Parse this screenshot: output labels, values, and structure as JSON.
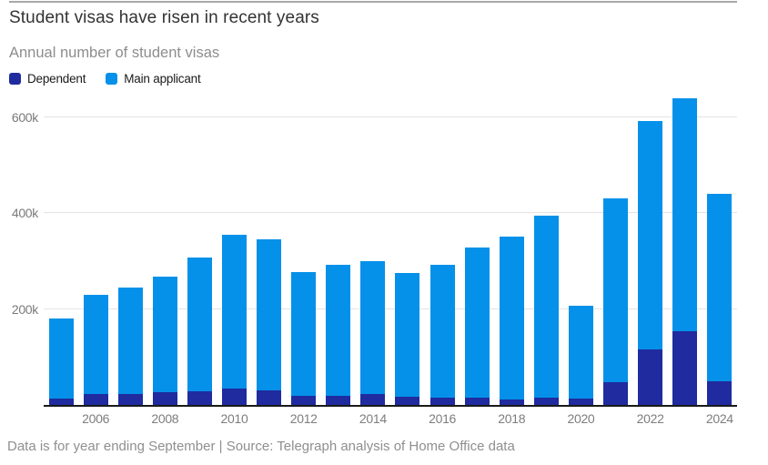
{
  "header": {
    "title": "Student visas have risen in recent years",
    "subtitle": "Annual number of student visas"
  },
  "legend": [
    {
      "label": "Dependent",
      "color": "#1f2b9e"
    },
    {
      "label": "Main applicant",
      "color": "#0591e9"
    }
  ],
  "footer": {
    "note": "Data is for year ending September | Source: Telegraph analysis of Home Office data"
  },
  "colors": {
    "dependent": "#1f2b9e",
    "main_applicant": "#0591e9",
    "gridline": "#e3e3e3",
    "baseline": "#1a1a1a",
    "axis_text": "#7a7a7a"
  },
  "chart_data": {
    "type": "bar",
    "stacked": true,
    "title": "Student visas have risen in recent years",
    "subtitle": "Annual number of student visas",
    "unit": "thousands of visas",
    "categories": [
      "2005",
      "2006",
      "2007",
      "2008",
      "2009",
      "2010",
      "2011",
      "2012",
      "2013",
      "2014",
      "2015",
      "2016",
      "2017",
      "2018",
      "2019",
      "2020",
      "2021",
      "2022",
      "2023",
      "2024"
    ],
    "series": [
      {
        "name": "Dependent",
        "color": "#1f2b9e",
        "values": [
          14,
          23,
          22,
          26,
          28,
          34,
          31,
          19,
          19,
          22,
          17,
          16,
          15,
          11,
          16,
          14,
          47,
          116,
          153,
          50
        ]
      },
      {
        "name": "Main applicant",
        "color": "#0591e9",
        "values": [
          166,
          207,
          222,
          242,
          280,
          320,
          314,
          258,
          274,
          277,
          259,
          276,
          314,
          340,
          378,
          193,
          384,
          476,
          486,
          391
        ]
      }
    ],
    "totals": [
      180,
      230,
      244,
      268,
      308,
      354,
      345,
      277,
      293,
      299,
      276,
      292,
      329,
      351,
      394,
      207,
      431,
      592,
      639,
      441
    ],
    "xlabel": "",
    "ylabel": "",
    "ylim": [
      0,
      645
    ],
    "yticks": [
      {
        "label": "200k",
        "value": 200
      },
      {
        "label": "400k",
        "value": 400
      },
      {
        "label": "600k",
        "value": 600
      }
    ],
    "xtick_labels": [
      "2006",
      "2008",
      "2010",
      "2012",
      "2014",
      "2016",
      "2018",
      "2020",
      "2022",
      "2024"
    ],
    "grid": "horizontal",
    "legend_position": "top-left",
    "note": "Data is for year ending September | Source: Telegraph analysis of Home Office data"
  }
}
